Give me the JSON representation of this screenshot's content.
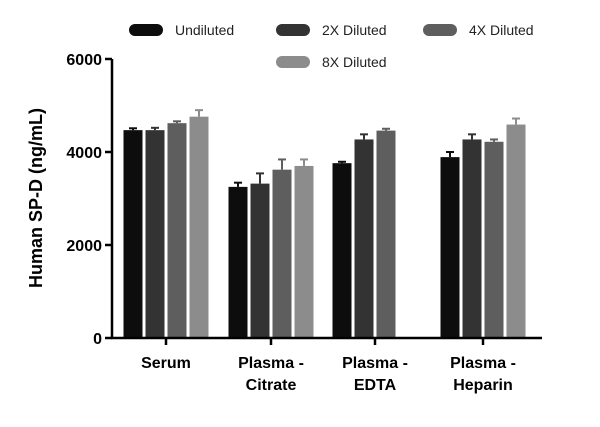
{
  "chart_data": {
    "type": "bar",
    "categories": [
      [
        "Serum"
      ],
      [
        "Plasma -",
        "Citrate"
      ],
      [
        "Plasma -",
        "EDTA"
      ],
      [
        "Plasma -",
        "Heparin"
      ]
    ],
    "series": [
      {
        "name": "Undiluted",
        "color": "#0d0d0d",
        "values": [
          4470,
          3250,
          3760,
          3890
        ],
        "errors": [
          40,
          90,
          30,
          110
        ]
      },
      {
        "name": "2X Diluted",
        "color": "#333333",
        "values": [
          4470,
          3320,
          4270,
          4270
        ],
        "errors": [
          50,
          220,
          110,
          110
        ]
      },
      {
        "name": "4X Diluted",
        "color": "#5e5e5e",
        "values": [
          4620,
          3620,
          4460,
          4220
        ],
        "errors": [
          40,
          220,
          40,
          50
        ]
      },
      {
        "name": "8X Diluted",
        "color": "#8c8c8c",
        "values": [
          4760,
          3700,
          null,
          4590
        ],
        "errors": [
          140,
          140,
          null,
          130
        ]
      }
    ],
    "xlabel": "",
    "ylabel": "Human SP-D (ng/mL)",
    "ylim": [
      0,
      6000
    ],
    "yticks": [
      0,
      2000,
      4000,
      6000
    ],
    "grid": false,
    "legend_position": "top"
  }
}
